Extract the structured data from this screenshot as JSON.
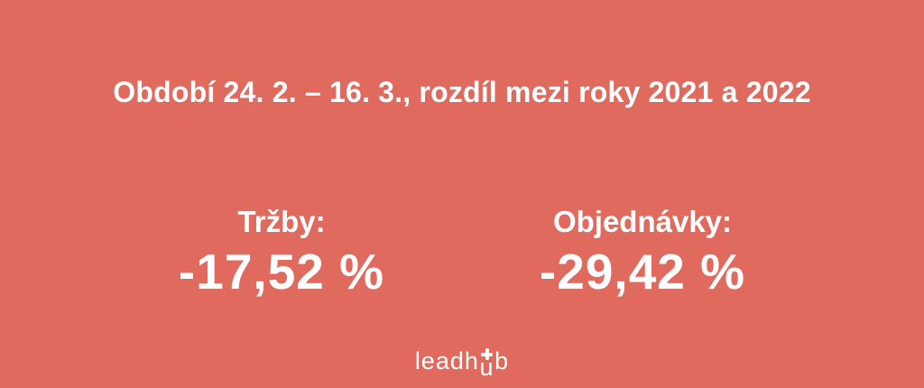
{
  "colors": {
    "background": "#e06a5e",
    "text": "#ffffff"
  },
  "title": "Období 24. 2. – 16. 3., rozdíl mezi roky 2021 a 2022",
  "stats": [
    {
      "label": "Tržby:",
      "value": "-17,52 %"
    },
    {
      "label": "Objednávky:",
      "value": "-29,42 %"
    }
  ],
  "logo": {
    "name": "leadhub",
    "text_before": "leadh",
    "text_u": "u",
    "text_after": "b",
    "icon": "plus-icon"
  },
  "chart_data": {
    "type": "table",
    "title": "Období 24. 2. – 16. 3., rozdíl mezi roky 2021 a 2022",
    "subtitle": "rozdíl mezi roky 2021 a 2022",
    "categories": [
      "Tržby",
      "Objednávky"
    ],
    "values": [
      -17.52,
      -29.42
    ],
    "unit": "%"
  }
}
